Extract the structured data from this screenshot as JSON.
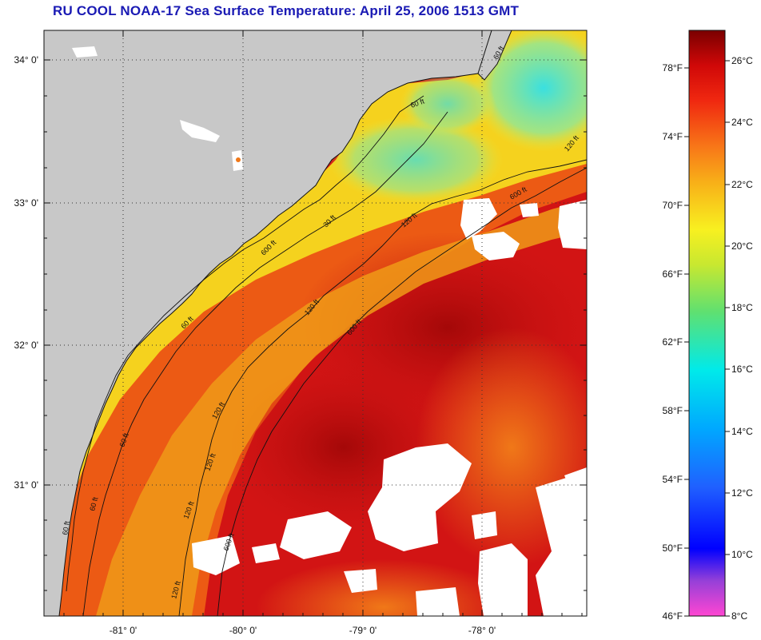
{
  "header": {
    "title": "RU COOL  NOAA-17  Sea Surface Temperature:  April 25, 2006 1513 GMT"
  },
  "map": {
    "lat_labels": [
      "34° 0'",
      "33° 0'",
      "32° 0'",
      "31° 0'"
    ],
    "lon_labels": [
      "-81° 0'",
      "-80° 0'",
      "-79° 0'",
      "-78° 0'"
    ],
    "contour_labels": [
      "60 ft",
      "60 ft",
      "30 ft",
      "120 ft",
      "600 ft",
      "60 ft",
      "120 ft",
      "600 ft",
      "120 ft",
      "60 ft",
      "120 ft",
      "600 ft",
      "120 ft",
      "60 ft",
      "120 ft",
      "600 ft",
      "120 ft",
      "60 ft"
    ],
    "colors": {
      "land": "#c8c8c8",
      "cloud": "#ffffff",
      "warm": "#d21414",
      "core": "#a80a0a",
      "shelf": "#f5d21e",
      "cool": "#40d8d8"
    }
  },
  "colorbar": {
    "fahrenheit_labels": [
      "78°F",
      "74°F",
      "70°F",
      "66°F",
      "62°F",
      "58°F",
      "54°F",
      "50°F",
      "46°F"
    ],
    "celsius_labels": [
      "26°C",
      "24°C",
      "22°C",
      "20°C",
      "18°C",
      "16°C",
      "14°C",
      "12°C",
      "10°C",
      "8°C"
    ],
    "range_celsius": [
      8,
      27.2
    ]
  }
}
